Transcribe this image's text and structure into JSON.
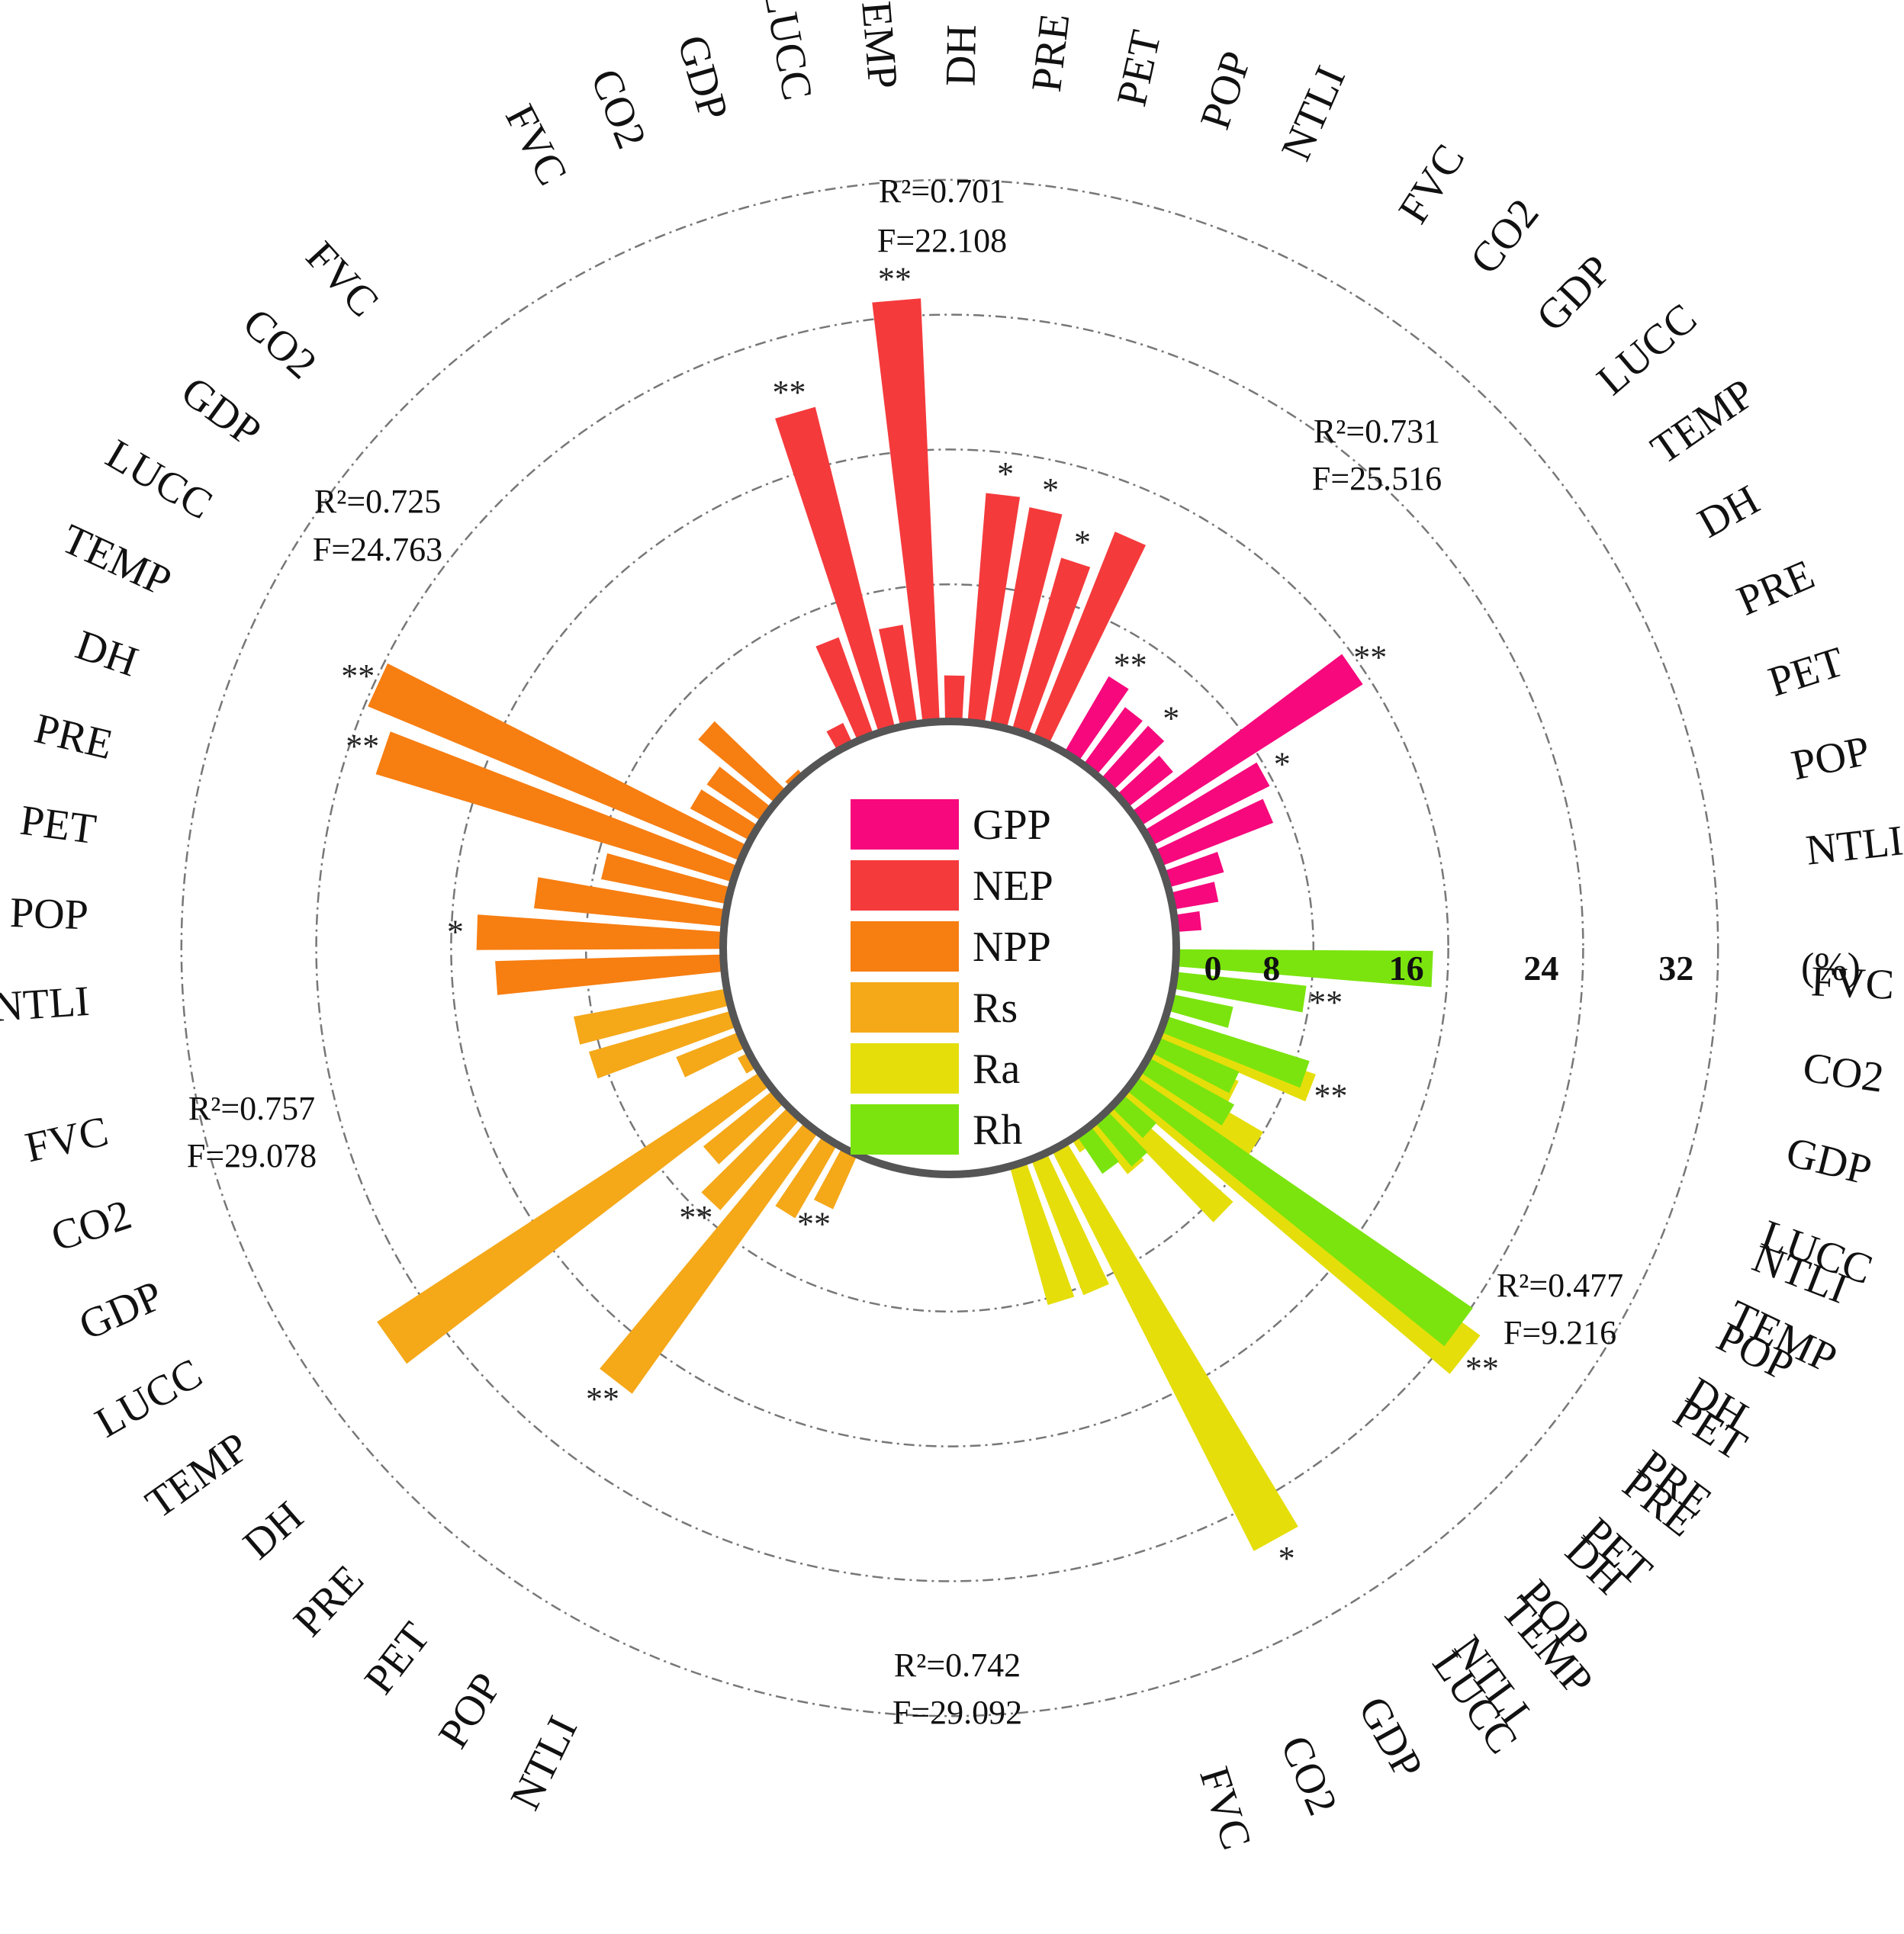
{
  "chart_data": {
    "type": "radial-bar",
    "unit": "(%)",
    "radial_ticks": [
      "0",
      "8",
      "16",
      "24",
      "32"
    ],
    "rmax": 32,
    "variables": [
      "FVC",
      "CO2",
      "GDP",
      "LUCC",
      "TEMP",
      "DH",
      "PRE",
      "PET",
      "POP",
      "NTLI"
    ],
    "series": [
      {
        "name": "GPP",
        "color": "#f7087c",
        "values": [
          5.1,
          4.1,
          4.1,
          3.3,
          15.5,
          7.7,
          7.0,
          3.3,
          2.6,
          1.4
        ],
        "significance": [
          "**",
          "",
          "*",
          "",
          "**",
          "*",
          "",
          "",
          "",
          ""
        ],
        "stats": {
          "r2": "R²=0.731",
          "f": "F=25.516"
        }
      },
      {
        "name": "NEP",
        "color": "#f53a3c",
        "values": [
          1.2,
          6.0,
          19.5,
          5.8,
          25.0,
          2.6,
          13.5,
          13.0,
          10.5,
          13.0
        ],
        "significance": [
          "",
          "",
          "**",
          "",
          "**",
          "",
          "*",
          "*",
          "*",
          ""
        ],
        "stats": {
          "r2": "R²=0.701",
          "f": "F=22.108"
        }
      },
      {
        "name": "NPP",
        "color": "#f77e11",
        "values": [
          0.3,
          5.8,
          3.8,
          3.9,
          23.8,
          22.0,
          7.5,
          11.2,
          14.5,
          13.4
        ],
        "significance": [
          "",
          "",
          "",
          "",
          "**",
          "**",
          "",
          "",
          "*",
          ""
        ],
        "stats": {
          "r2": "R²=0.725",
          "f": "F=24.763"
        }
      },
      {
        "name": "Rs",
        "color": "#f5a818",
        "values": [
          9.1,
          8.7,
          3.9,
          0.6,
          27.0,
          5.2,
          7.1,
          18.9,
          4.9,
          3.4
        ],
        "significance": [
          "",
          "",
          "",
          "",
          "",
          "",
          "**",
          "**",
          "",
          "**"
        ],
        "stats": {
          "r2": "R²=0.757",
          "f": "F=29.078"
        }
      },
      {
        "name": "Ra",
        "color": "#e5de0a",
        "values": [
          8.4,
          8.5,
          26.5,
          0.8,
          3.5,
          9.0,
          25.4,
          8.0,
          5.3,
          9.4
        ],
        "significance": [
          "",
          "",
          "*",
          "",
          "",
          "",
          "**",
          "",
          "",
          "**"
        ],
        "stats": {
          "r2": "R²=0.742",
          "f": "F=29.092"
        }
      },
      {
        "name": "Rh",
        "color": "#7be40e",
        "values": [
          15.1,
          7.7,
          3.6,
          8.8,
          5.1,
          5.7,
          24.1,
          2.5,
          3.3,
          2.6
        ],
        "significance": [
          "",
          "**",
          "",
          "",
          "",
          "",
          "",
          "",
          "",
          ""
        ],
        "stats": {
          "r2": "R²=0.477",
          "f": "F=9.216"
        }
      }
    ],
    "legend": [
      "GPP",
      "NEP",
      "NPP",
      "Rs",
      "Ra",
      "Rh"
    ]
  }
}
